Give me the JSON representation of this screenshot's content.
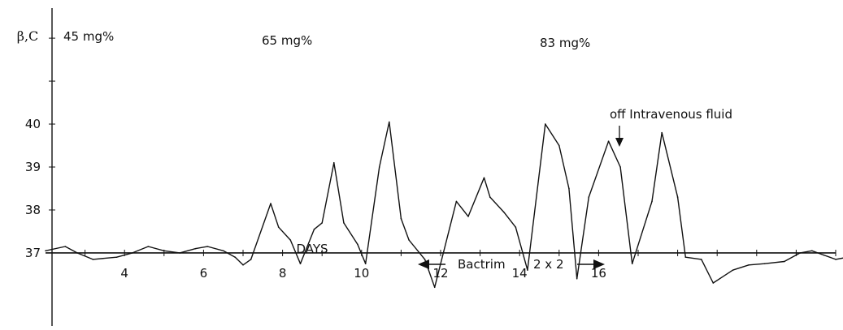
{
  "chart_data": {
    "type": "line",
    "title": "",
    "xlabel": "DAYS",
    "ylabel": "β,C",
    "xlim": [
      2,
      22
    ],
    "ylim": [
      35.3,
      42.7
    ],
    "x_ticks": [
      4,
      6,
      8,
      10,
      12,
      14,
      16
    ],
    "y_ticks": [
      37,
      38,
      39,
      40
    ],
    "grid": false,
    "legend": "none",
    "annotations": {
      "dose1": "45 mg%",
      "dose2": "65 mg%",
      "dose3": "83 mg%",
      "off_iv": "off Intravenous fluid",
      "treatment": "Bactrim",
      "treatment_dose": "2 x 2"
    },
    "series": [
      {
        "color": "#111111",
        "points": [
          [
            2.0,
            37.05
          ],
          [
            2.5,
            37.15
          ],
          [
            2.8,
            37.0
          ],
          [
            3.2,
            36.85
          ],
          [
            3.8,
            36.9
          ],
          [
            4.2,
            37.0
          ],
          [
            4.6,
            37.15
          ],
          [
            5.0,
            37.05
          ],
          [
            5.4,
            37.0
          ],
          [
            5.8,
            37.1
          ],
          [
            6.1,
            37.15
          ],
          [
            6.5,
            37.05
          ],
          [
            6.8,
            36.9
          ],
          [
            7.0,
            36.72
          ],
          [
            7.2,
            36.85
          ],
          [
            7.7,
            38.15
          ],
          [
            7.9,
            37.6
          ],
          [
            8.2,
            37.3
          ],
          [
            8.45,
            36.75
          ],
          [
            8.8,
            37.55
          ],
          [
            9.0,
            37.7
          ],
          [
            9.3,
            39.1
          ],
          [
            9.55,
            37.7
          ],
          [
            9.9,
            37.2
          ],
          [
            10.1,
            36.75
          ],
          [
            10.45,
            39.0
          ],
          [
            10.7,
            40.05
          ],
          [
            11.0,
            37.8
          ],
          [
            11.2,
            37.3
          ],
          [
            11.6,
            36.85
          ],
          [
            11.85,
            36.2
          ],
          [
            12.4,
            38.2
          ],
          [
            12.7,
            37.85
          ],
          [
            13.1,
            38.75
          ],
          [
            13.25,
            38.3
          ],
          [
            13.6,
            37.95
          ],
          [
            13.9,
            37.6
          ],
          [
            14.2,
            36.6
          ],
          [
            14.65,
            40.0
          ],
          [
            15.0,
            39.5
          ],
          [
            15.25,
            38.5
          ],
          [
            15.45,
            36.4
          ],
          [
            15.75,
            38.3
          ],
          [
            16.25,
            39.6
          ],
          [
            16.55,
            39.0
          ],
          [
            16.85,
            36.75
          ],
          [
            17.35,
            38.2
          ],
          [
            17.6,
            39.8
          ],
          [
            18.0,
            38.3
          ],
          [
            18.2,
            36.9
          ],
          [
            18.6,
            36.85
          ],
          [
            18.9,
            36.3
          ],
          [
            19.4,
            36.6
          ],
          [
            19.8,
            36.72
          ],
          [
            20.2,
            36.75
          ],
          [
            20.7,
            36.8
          ],
          [
            21.1,
            37.0
          ],
          [
            21.4,
            37.05
          ],
          [
            21.7,
            36.95
          ],
          [
            22.0,
            36.85
          ],
          [
            22.3,
            36.9
          ],
          [
            22.6,
            37.0
          ]
        ]
      }
    ]
  }
}
